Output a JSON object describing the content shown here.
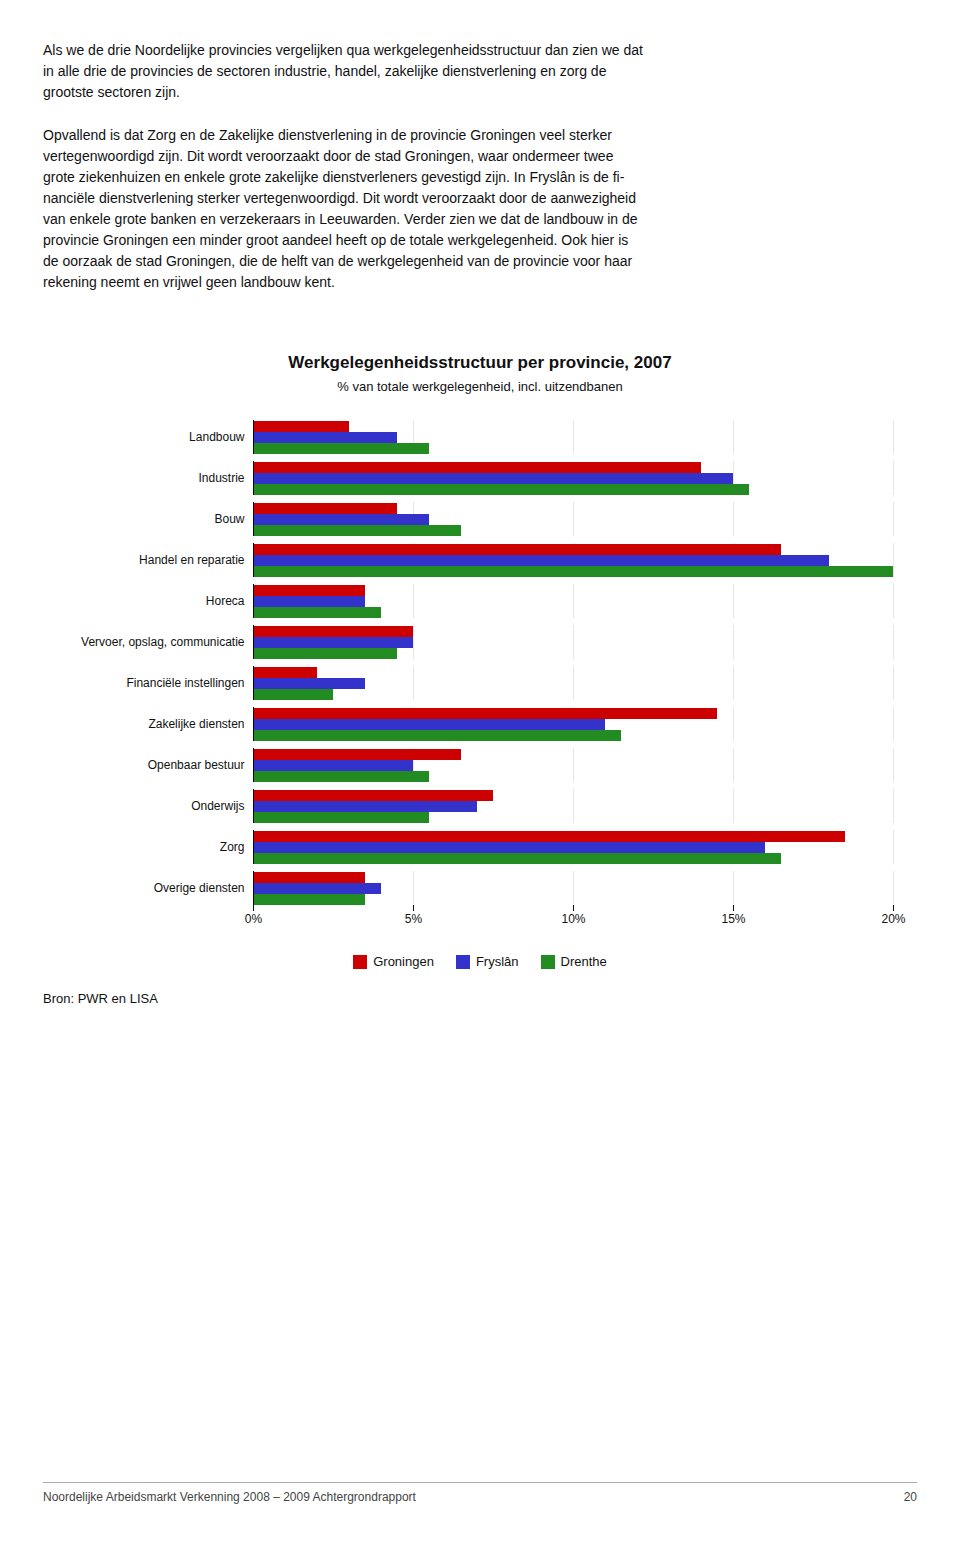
{
  "paragraphs": [
    "Als we de drie Noordelijke provincies vergelijken qua werkgelegenheidsstructuur dan zien we dat\nin alle drie de provincies de sectoren industrie, handel, zakelijke dienstverlening en zorg de\ngrootste sectoren zijn.",
    "Opvallend is dat Zorg en de Zakelijke dienstverlening in de provincie Groningen veel sterker\nvertegenwoordigd zijn. Dit wordt veroorzaakt door de stad Groningen, waar ondermeer twee\ngrote ziekenhuizen en enkele grote zakelijke dienstverleners gevestigd zijn. In Fryslân is de fi-\nnanciële dienstverlening sterker vertegenwoordigd. Dit wordt veroorzaakt door de aanwezigheid\nvan enkele grote banken en verzekeraars in Leeuwarden. Verder zien we dat de landbouw in de\nprovincie Groningen een minder groot aandeel heeft op de totale werkgelegenheid. Ook hier is\nde oorzaak de stad Groningen, die de helft van de werkgelegenheid van de provincie voor haar\nrekening neemt en vrijwel geen landbouw kent."
  ],
  "footer": "Noordelijke Arbeidsmarkt Verkenning 2008 – 2009 Achtergrondrapport",
  "page_number": "20",
  "chart_data": {
    "type": "bar",
    "orientation": "horizontal",
    "title": "Werkgelegenheidsstructuur per provincie, 2007",
    "subtitle": "% van totale werkgelegenheid, incl. uitzendbanen",
    "source": "Bron: PWR en LISA",
    "categories": [
      "Landbouw",
      "Industrie",
      "Bouw",
      "Handel en reparatie",
      "Horeca",
      "Vervoer, opslag, communicatie",
      "Financiële instellingen",
      "Zakelijke diensten",
      "Openbaar bestuur",
      "Onderwijs",
      "Zorg",
      "Overige diensten"
    ],
    "series": [
      {
        "name": "Groningen",
        "color": "#cc0000",
        "values": [
          3.0,
          14.0,
          4.5,
          16.5,
          3.5,
          5.0,
          2.0,
          14.5,
          6.5,
          7.5,
          18.5,
          3.5
        ]
      },
      {
        "name": "Fryslân",
        "color": "#3333cc",
        "values": [
          4.5,
          15.0,
          5.5,
          18.0,
          3.5,
          5.0,
          3.5,
          11.0,
          5.0,
          7.0,
          16.0,
          4.0
        ]
      },
      {
        "name": "Drenthe",
        "color": "#228B22",
        "values": [
          5.5,
          15.5,
          6.5,
          20.0,
          4.0,
          4.5,
          2.5,
          11.5,
          5.5,
          5.5,
          16.5,
          3.5
        ]
      }
    ],
    "xlim": [
      0,
      20
    ],
    "xticks": [
      {
        "value": 0,
        "label": "0%"
      },
      {
        "value": 5,
        "label": "5%"
      },
      {
        "value": 10,
        "label": "10%"
      },
      {
        "value": 15,
        "label": "15%"
      },
      {
        "value": 20,
        "label": "20%"
      }
    ],
    "grid": true,
    "legend": "bottom"
  }
}
